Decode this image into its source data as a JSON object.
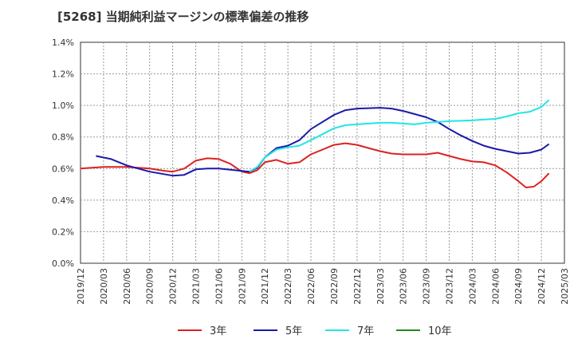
{
  "chart_data": {
    "type": "line",
    "title": "[5268]  当期純利益マージンの標準偏差の推移",
    "xlabel": "",
    "ylabel": "",
    "x": [
      "2019/12",
      "2020/03",
      "2020/06",
      "2020/09",
      "2020/12",
      "2021/03",
      "2021/06",
      "2021/09",
      "2021/12",
      "2022/03",
      "2022/06",
      "2022/09",
      "2022/12",
      "2023/03",
      "2023/06",
      "2023/09",
      "2023/12",
      "2024/03",
      "2024/06",
      "2024/09",
      "2024/12",
      "2025/03"
    ],
    "ylim": [
      0.0,
      1.4
    ],
    "yticks": [
      "0.0%",
      "0.2%",
      "0.4%",
      "0.6%",
      "0.8%",
      "1.0%",
      "1.2%",
      "1.4%"
    ],
    "grid": true,
    "legend": "bottom",
    "series": [
      {
        "name": "3年",
        "color": "#dd2222",
        "points": [
          [
            0,
            0.6
          ],
          [
            1,
            0.61
          ],
          [
            2,
            0.61
          ],
          [
            3,
            0.6
          ],
          [
            3.67,
            0.585
          ],
          [
            4,
            0.58
          ],
          [
            4.5,
            0.6
          ],
          [
            5,
            0.65
          ],
          [
            5.5,
            0.665
          ],
          [
            6,
            0.66
          ],
          [
            6.5,
            0.63
          ],
          [
            7,
            0.58
          ],
          [
            7.33,
            0.57
          ],
          [
            7.67,
            0.59
          ],
          [
            8,
            0.64
          ],
          [
            8.5,
            0.655
          ],
          [
            9,
            0.63
          ],
          [
            9.5,
            0.64
          ],
          [
            10,
            0.69
          ],
          [
            11,
            0.75
          ],
          [
            11.5,
            0.76
          ],
          [
            12,
            0.75
          ],
          [
            12.5,
            0.73
          ],
          [
            13,
            0.71
          ],
          [
            13.5,
            0.695
          ],
          [
            14,
            0.69
          ],
          [
            15,
            0.69
          ],
          [
            15.5,
            0.7
          ],
          [
            16,
            0.68
          ],
          [
            16.5,
            0.66
          ],
          [
            17,
            0.645
          ],
          [
            17.5,
            0.64
          ],
          [
            18,
            0.62
          ],
          [
            18.5,
            0.575
          ],
          [
            19,
            0.52
          ],
          [
            19.33,
            0.48
          ],
          [
            19.67,
            0.485
          ],
          [
            20,
            0.52
          ],
          [
            20.33,
            0.57
          ]
        ]
      },
      {
        "name": "5年",
        "color": "#1a1aa8",
        "points": [
          [
            0.67,
            0.68
          ],
          [
            1.33,
            0.66
          ],
          [
            2,
            0.62
          ],
          [
            3,
            0.58
          ],
          [
            4,
            0.555
          ],
          [
            4.5,
            0.56
          ],
          [
            5,
            0.595
          ],
          [
            5.5,
            0.6
          ],
          [
            6,
            0.6
          ],
          [
            7,
            0.585
          ],
          [
            7.33,
            0.58
          ],
          [
            7.67,
            0.605
          ],
          [
            8,
            0.67
          ],
          [
            8.5,
            0.73
          ],
          [
            9,
            0.745
          ],
          [
            9.5,
            0.78
          ],
          [
            10,
            0.85
          ],
          [
            11,
            0.94
          ],
          [
            11.5,
            0.97
          ],
          [
            12,
            0.98
          ],
          [
            13,
            0.985
          ],
          [
            13.5,
            0.98
          ],
          [
            14,
            0.965
          ],
          [
            14.5,
            0.945
          ],
          [
            15,
            0.925
          ],
          [
            15.5,
            0.895
          ],
          [
            16,
            0.85
          ],
          [
            16.5,
            0.81
          ],
          [
            17,
            0.775
          ],
          [
            17.5,
            0.745
          ],
          [
            18,
            0.725
          ],
          [
            18.5,
            0.71
          ],
          [
            19,
            0.695
          ],
          [
            19.5,
            0.7
          ],
          [
            20,
            0.72
          ],
          [
            20.33,
            0.755
          ]
        ]
      },
      {
        "name": "7年",
        "color": "#22e5e5",
        "points": [
          [
            7.33,
            0.58
          ],
          [
            7.67,
            0.61
          ],
          [
            8,
            0.67
          ],
          [
            8.5,
            0.72
          ],
          [
            9,
            0.735
          ],
          [
            9.5,
            0.745
          ],
          [
            10,
            0.78
          ],
          [
            11,
            0.855
          ],
          [
            11.5,
            0.875
          ],
          [
            12,
            0.88
          ],
          [
            13,
            0.89
          ],
          [
            13.5,
            0.89
          ],
          [
            14,
            0.885
          ],
          [
            14.5,
            0.88
          ],
          [
            15,
            0.89
          ],
          [
            15.5,
            0.895
          ],
          [
            16,
            0.9
          ],
          [
            17,
            0.905
          ],
          [
            17.5,
            0.91
          ],
          [
            18,
            0.915
          ],
          [
            18.5,
            0.93
          ],
          [
            19,
            0.95
          ],
          [
            19.5,
            0.96
          ],
          [
            20,
            0.99
          ],
          [
            20.33,
            1.035
          ]
        ]
      },
      {
        "name": "10年",
        "color": "#228822",
        "points": []
      }
    ]
  }
}
